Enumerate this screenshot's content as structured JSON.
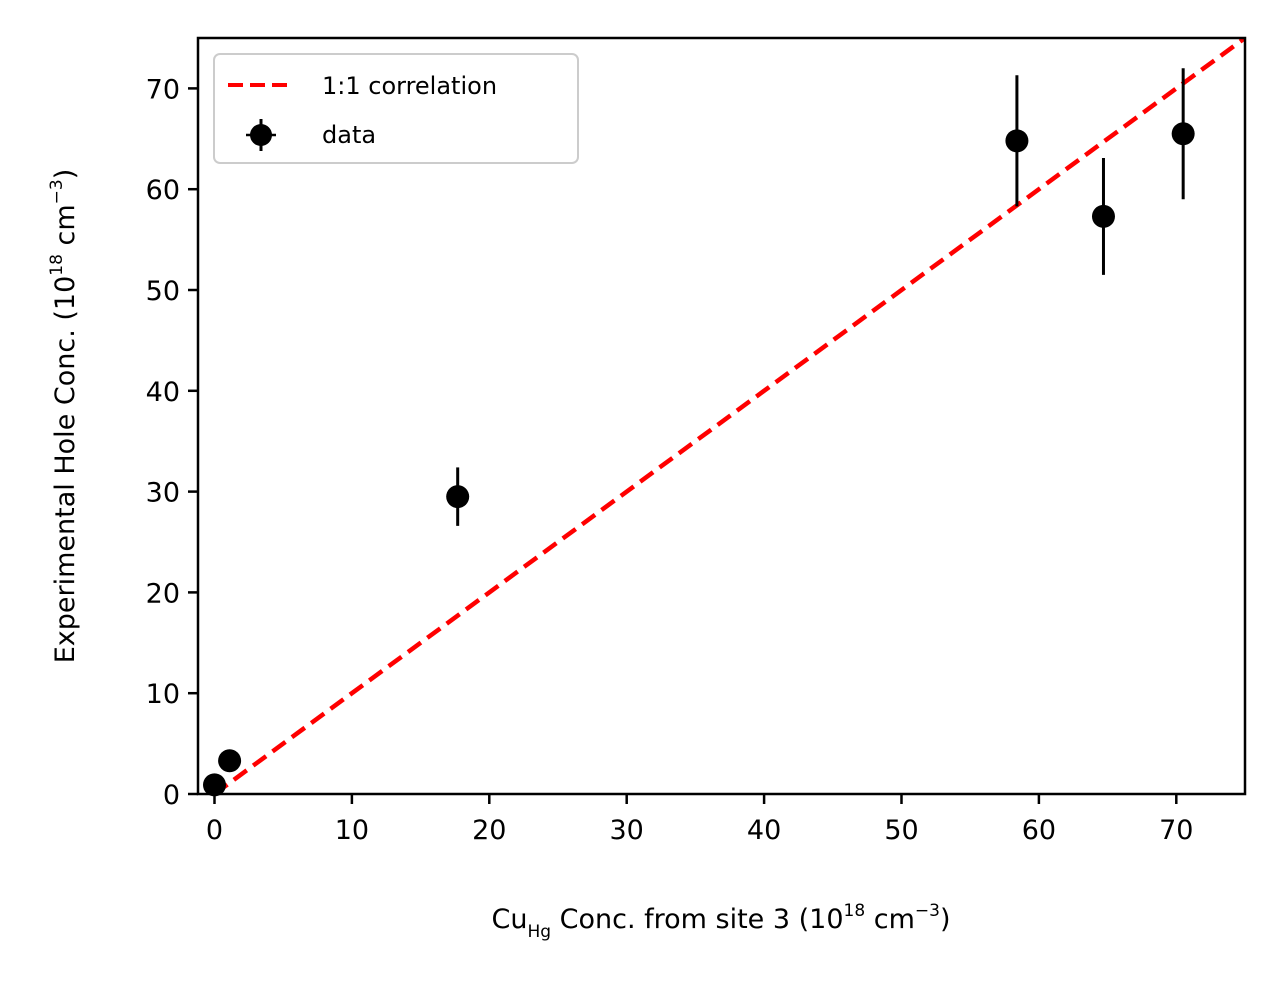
{
  "chart_data": {
    "type": "scatter",
    "xlabel": {
      "main": "Cu",
      "sub": "Hg",
      "rest": " Conc. from site 3 (10",
      "sup": "18",
      "unit": " cm",
      "unit_sup": "−3",
      "close": ")"
    },
    "ylabel": {
      "main": "Experimental Hole Conc. (10",
      "sup": "18",
      "unit": " cm",
      "unit_sup": "−3",
      "close": ")"
    },
    "xlim": [
      -1.2,
      75
    ],
    "ylim": [
      0,
      75
    ],
    "xticks": [
      0,
      10,
      20,
      30,
      40,
      50,
      60,
      70
    ],
    "yticks": [
      0,
      10,
      20,
      30,
      40,
      50,
      60,
      70
    ],
    "legend": {
      "placement": "top-left",
      "entries": [
        "1:1 correlation",
        "data"
      ]
    },
    "series": [
      {
        "name": "1:1 correlation",
        "kind": "line",
        "style": "dashed",
        "color": "#ff0000",
        "x": [
          0,
          75
        ],
        "y": [
          0,
          75
        ]
      },
      {
        "name": "data",
        "kind": "errorbar",
        "color": "#000000",
        "x": [
          0,
          1.1,
          17.7,
          58.4,
          64.7,
          70.5
        ],
        "y": [
          0.9,
          3.3,
          29.5,
          64.8,
          57.3,
          65.5
        ],
        "yerr": [
          0,
          0,
          2.9,
          6.5,
          5.8,
          6.5
        ]
      }
    ]
  }
}
